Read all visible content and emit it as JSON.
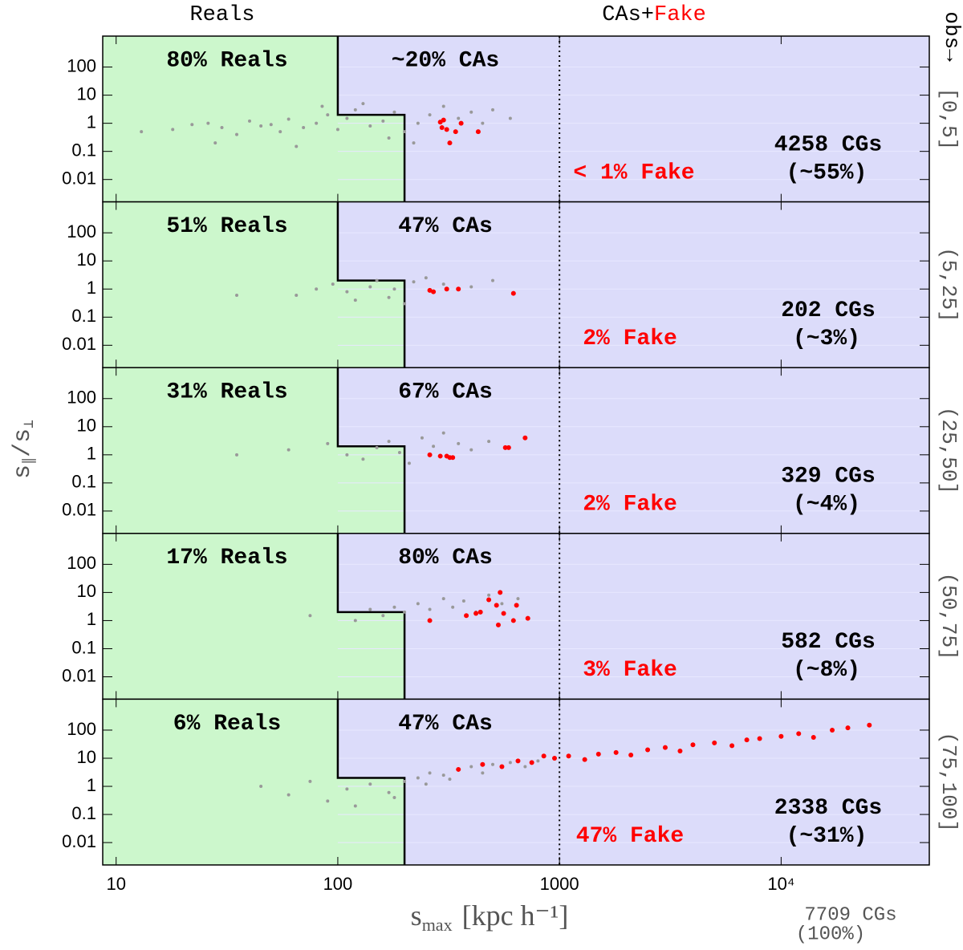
{
  "chart_data": {
    "type": "scatter",
    "header": {
      "left": "Reals",
      "mid": "CAs+",
      "mid_red": "Fake",
      "right": "% obs→"
    },
    "xlabel": {
      "symbol": "s",
      "subscript": "max",
      "unit": "[kpc h⁻¹]"
    },
    "ylabel": {
      "symbol": "s",
      "sub1": "∥",
      "slash": "/s",
      "sub2": "⊥"
    },
    "total": {
      "count": "7709 CGs",
      "percent": "(100%)"
    },
    "xscale": "log",
    "yscale": "log",
    "xlim": [
      8.7,
      46600
    ],
    "xticks": [
      10,
      100,
      1000,
      {
        "value": 10000,
        "label": "10⁴"
      }
    ],
    "ylim": [
      0.0016,
      1260
    ],
    "yticks": [
      100,
      10,
      1,
      0.1,
      0.01
    ],
    "panels": [
      {
        "range": "[0,5]",
        "reals": "80% Reals",
        "cas": "~20% CAs",
        "fake": "< 1% Fake",
        "count": "4258 CGs",
        "percent": "(~55%)",
        "series": [
          {
            "color": "#999999",
            "x": [
              13,
              18,
              22,
              26,
              30,
              35,
              40,
              45,
              50,
              55,
              60,
              70,
              80,
              90,
              100,
              110,
              120,
              140,
              160,
              180,
              200,
              230,
              260,
              300,
              350,
              400,
              450,
              500,
              600,
              28,
              65,
              85,
              130,
              170,
              220
            ],
            "values": [
              0.5,
              0.6,
              0.9,
              1.0,
              0.7,
              0.4,
              1.2,
              0.8,
              0.9,
              0.5,
              1.4,
              0.7,
              1.0,
              2.0,
              0.6,
              1.5,
              3.0,
              0.8,
              1.2,
              2.5,
              0.5,
              1.0,
              2.0,
              4.0,
              1.5,
              2.5,
              1.0,
              3.0,
              1.5,
              0.2,
              0.15,
              4.0,
              5.0,
              0.3,
              0.2
            ]
          },
          {
            "color": "#ff0000",
            "x": [
              290,
              300,
              310,
              320,
              340,
              360,
              430,
              295
            ],
            "values": [
              1.1,
              1.3,
              0.6,
              0.2,
              0.5,
              1.0,
              0.5,
              0.7
            ]
          }
        ]
      },
      {
        "range": "(5,25]",
        "reals": "51% Reals",
        "cas": "47% CAs",
        "fake": "2% Fake",
        "count": "202 CGs",
        "percent": "(~3%)",
        "series": [
          {
            "color": "#999999",
            "x": [
              35,
              65,
              80,
              95,
              110,
              120,
              140,
              150,
              170,
              180,
              200,
              220,
              250,
              300,
              400,
              500
            ],
            "values": [
              0.6,
              0.6,
              1.0,
              1.5,
              0.8,
              0.4,
              1.2,
              2.0,
              0.5,
              1.0,
              0.3,
              1.8,
              2.5,
              1.5,
              1.2,
              2.0
            ]
          },
          {
            "color": "#ff0000",
            "x": [
              260,
              270,
              310,
              350,
              620
            ],
            "values": [
              0.9,
              0.8,
              1.0,
              1.0,
              0.7
            ]
          }
        ]
      },
      {
        "range": "(25,50]",
        "reals": "31% Reals",
        "cas": "67% CAs",
        "fake": "2% Fake",
        "count": "329 CGs",
        "percent": "(~4%)",
        "series": [
          {
            "color": "#999999",
            "x": [
              35,
              60,
              90,
              110,
              130,
              150,
              170,
              190,
              210,
              240,
              270,
              300,
              350,
              400,
              480
            ],
            "values": [
              1.0,
              1.5,
              2.5,
              1.0,
              0.7,
              1.8,
              3.0,
              1.2,
              0.5,
              4.0,
              2.0,
              6.0,
              2.5,
              1.5,
              3.0
            ]
          },
          {
            "color": "#ff0000",
            "x": [
              260,
              290,
              310,
              320,
              330,
              570,
              590,
              700
            ],
            "values": [
              1.0,
              0.9,
              0.9,
              0.8,
              0.8,
              1.8,
              1.8,
              4.0
            ]
          }
        ]
      },
      {
        "range": "(50,75]",
        "reals": "17% Reals",
        "cas": "80% CAs",
        "fake": "3% Fake",
        "count": "582 CGs",
        "percent": "(~8%)",
        "series": [
          {
            "color": "#999999",
            "x": [
              75,
              120,
              140,
              160,
              180,
              200,
              230,
              260,
              300,
              330,
              370,
              420,
              480,
              550,
              650
            ],
            "values": [
              1.5,
              1.0,
              2.5,
              1.5,
              3.0,
              2.0,
              4.0,
              2.5,
              6.0,
              3.0,
              5.0,
              2.0,
              8.0,
              4.0,
              6.0
            ]
          },
          {
            "color": "#ff0000",
            "x": [
              260,
              380,
              420,
              440,
              480,
              520,
              530,
              540,
              560,
              620,
              640,
              720
            ],
            "values": [
              1.0,
              1.5,
              1.8,
              2.0,
              5.5,
              3.5,
              0.7,
              10,
              1.8,
              1.0,
              3.5,
              1.2
            ]
          }
        ]
      },
      {
        "range": "(75,100]",
        "reals": "6% Reals",
        "cas": "47% CAs",
        "fake": "47% Fake",
        "count": "2338 CGs",
        "percent": "(~31%)",
        "series": [
          {
            "color": "#999999",
            "x": [
              45,
              60,
              75,
              90,
              110,
              140,
              170,
              200,
              230,
              260,
              300,
              350,
              400,
              450,
              500,
              600,
              700,
              800,
              120,
              180,
              250,
              320
            ],
            "values": [
              1.0,
              0.5,
              1.5,
              0.3,
              0.8,
              1.2,
              0.6,
              1.5,
              2.0,
              3.0,
              2.5,
              4.0,
              5.0,
              3.0,
              6.0,
              7.0,
              5.0,
              8.0,
              0.2,
              0.4,
              1.2,
              1.8
            ]
          },
          {
            "color": "#ff0000",
            "x": [
              350,
              450,
              550,
              650,
              750,
              850,
              950,
              1100,
              1300,
              1500,
              1800,
              2100,
              2500,
              3000,
              3500,
              4000,
              5000,
              6000,
              7000,
              8000,
              10000,
              12000,
              14000,
              17000,
              20000,
              25000
            ],
            "values": [
              4,
              6,
              5,
              8,
              7,
              12,
              10,
              12,
              9,
              14,
              16,
              13,
              20,
              24,
              18,
              30,
              35,
              28,
              45,
              50,
              60,
              75,
              55,
              100,
              120,
              150
            ]
          }
        ]
      }
    ]
  }
}
